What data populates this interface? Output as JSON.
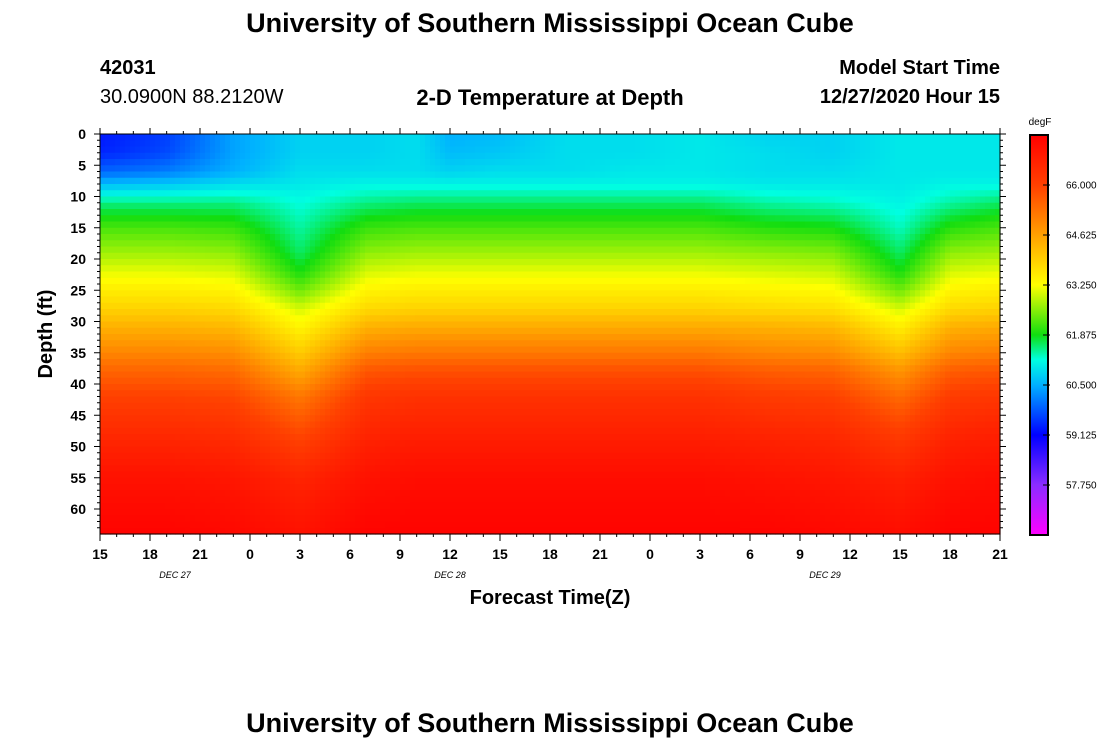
{
  "header": {
    "title": "University of Southern Mississippi Ocean Cube",
    "station_id": "42031",
    "location": "30.0900N 88.2120W",
    "plot_title": "2-D Temperature at Depth",
    "model_start_label": "Model Start Time",
    "model_start_value": "12/27/2020 Hour 15"
  },
  "footer": {
    "title": "University of Southern Mississippi Ocean Cube"
  },
  "chart_data": {
    "type": "heatmap",
    "title": "2-D Temperature at Depth",
    "xlabel": "Forecast Time(Z)",
    "ylabel": "Depth (ft)",
    "x_tick_labels": [
      "15",
      "18",
      "21",
      "0",
      "3",
      "6",
      "9",
      "12",
      "15",
      "18",
      "21",
      "0",
      "3",
      "6",
      "9",
      "12",
      "15",
      "18",
      "21"
    ],
    "date_labels": [
      {
        "label": "DEC 27",
        "tick_index": 1.5
      },
      {
        "label": "DEC 28",
        "tick_index": 7
      },
      {
        "label": "DEC 29",
        "tick_index": 14.5
      }
    ],
    "y_ticks": [
      0,
      5,
      10,
      15,
      20,
      25,
      30,
      35,
      40,
      45,
      50,
      55,
      60
    ],
    "ylim": [
      0,
      64
    ],
    "xlim_hours": [
      0,
      54
    ],
    "colorbar": {
      "units": "degF",
      "range": [
        56.375,
        67.375
      ],
      "ticks": [
        66.0,
        64.625,
        63.25,
        61.875,
        60.5,
        59.125,
        57.75
      ],
      "tick_labels": [
        "66.000",
        "64.625",
        "63.250",
        "61.875",
        "60.500",
        "59.125",
        "57.750"
      ],
      "stops": [
        {
          "value": 56.375,
          "color": "#ff00ff"
        },
        {
          "value": 57.75,
          "color": "#8b2cff"
        },
        {
          "value": 59.125,
          "color": "#0000ff"
        },
        {
          "value": 60.5,
          "color": "#00b0ff"
        },
        {
          "value": 61.2,
          "color": "#00ffe0"
        },
        {
          "value": 61.875,
          "color": "#10dd10"
        },
        {
          "value": 63.25,
          "color": "#ffff00"
        },
        {
          "value": 64.625,
          "color": "#ffa000"
        },
        {
          "value": 66.0,
          "color": "#ff4000"
        },
        {
          "value": 67.375,
          "color": "#ff0000"
        }
      ]
    },
    "temperature_profiles": {
      "depths_ft": [
        0,
        3,
        6,
        8,
        11,
        15,
        19,
        22,
        25,
        28,
        31,
        35,
        38,
        42,
        48,
        55,
        64
      ],
      "times_hours": [
        0,
        4,
        8,
        12,
        16,
        19,
        21,
        24,
        28,
        32,
        36,
        40,
        44,
        48,
        51,
        54
      ],
      "values_degF": [
        [
          59.3,
          59.4,
          59.9,
          60.6,
          61.5,
          62.2,
          62.7,
          63.1,
          63.5,
          63.9,
          64.4,
          65.0,
          65.5,
          66.0,
          66.5,
          67.0,
          67.3
        ],
        [
          59.6,
          59.7,
          60.1,
          60.7,
          61.5,
          62.2,
          62.7,
          63.1,
          63.5,
          63.9,
          64.4,
          65.0,
          65.5,
          66.0,
          66.5,
          67.0,
          67.3
        ],
        [
          60.4,
          60.4,
          60.5,
          60.9,
          61.5,
          62.1,
          62.6,
          63.0,
          63.4,
          63.8,
          64.3,
          64.9,
          65.4,
          65.9,
          66.4,
          66.9,
          67.2
        ],
        [
          60.8,
          60.8,
          60.9,
          61.0,
          61.2,
          61.4,
          61.6,
          61.9,
          62.4,
          63.0,
          63.4,
          64.0,
          64.5,
          65.2,
          65.9,
          66.6,
          67.0
        ],
        [
          60.8,
          60.8,
          60.9,
          61.1,
          61.5,
          62.1,
          62.6,
          63.0,
          63.4,
          63.8,
          64.4,
          65.1,
          65.7,
          66.2,
          66.6,
          67.0,
          67.3
        ],
        [
          60.9,
          60.9,
          60.9,
          61.1,
          61.6,
          62.2,
          62.7,
          63.1,
          63.5,
          63.9,
          64.5,
          65.2,
          65.8,
          66.3,
          66.7,
          67.1,
          67.3
        ],
        [
          60.5,
          60.6,
          60.8,
          61.1,
          61.6,
          62.2,
          62.7,
          63.1,
          63.5,
          63.9,
          64.5,
          65.2,
          65.8,
          66.3,
          66.7,
          67.1,
          67.3
        ],
        [
          60.6,
          60.7,
          60.9,
          61.1,
          61.6,
          62.2,
          62.7,
          63.1,
          63.5,
          63.9,
          64.5,
          65.2,
          65.8,
          66.3,
          66.7,
          67.1,
          67.3
        ],
        [
          60.9,
          60.9,
          60.9,
          61.1,
          61.6,
          62.2,
          62.7,
          63.1,
          63.5,
          63.9,
          64.5,
          65.2,
          65.8,
          66.3,
          66.7,
          67.1,
          67.3
        ],
        [
          60.9,
          60.9,
          61.0,
          61.1,
          61.6,
          62.2,
          62.7,
          63.1,
          63.5,
          63.9,
          64.5,
          65.2,
          65.8,
          66.3,
          66.7,
          67.1,
          67.3
        ],
        [
          61.0,
          61.0,
          61.0,
          61.1,
          61.6,
          62.2,
          62.7,
          63.1,
          63.5,
          63.9,
          64.5,
          65.2,
          65.8,
          66.3,
          66.7,
          67.1,
          67.3
        ],
        [
          60.8,
          60.9,
          60.9,
          61.0,
          61.4,
          62.0,
          62.6,
          63.0,
          63.4,
          63.8,
          64.4,
          65.0,
          65.6,
          66.1,
          66.6,
          67.0,
          67.3
        ],
        [
          60.8,
          60.8,
          60.9,
          61.0,
          61.3,
          61.9,
          62.5,
          62.9,
          63.3,
          63.7,
          64.3,
          64.9,
          65.5,
          66.0,
          66.5,
          66.9,
          67.2
        ],
        [
          61.0,
          61.0,
          61.0,
          61.0,
          61.1,
          61.3,
          61.6,
          61.9,
          62.4,
          63.0,
          63.5,
          64.2,
          64.8,
          65.4,
          66.1,
          66.7,
          67.1
        ],
        [
          61.0,
          61.0,
          61.0,
          61.1,
          61.4,
          62.0,
          62.6,
          63.0,
          63.4,
          63.8,
          64.4,
          65.0,
          65.6,
          66.1,
          66.6,
          67.0,
          67.3
        ],
        [
          61.0,
          61.0,
          61.0,
          61.1,
          61.6,
          62.2,
          62.7,
          63.1,
          63.5,
          63.9,
          64.5,
          65.1,
          65.7,
          66.2,
          66.7,
          67.1,
          67.3
        ]
      ]
    }
  }
}
